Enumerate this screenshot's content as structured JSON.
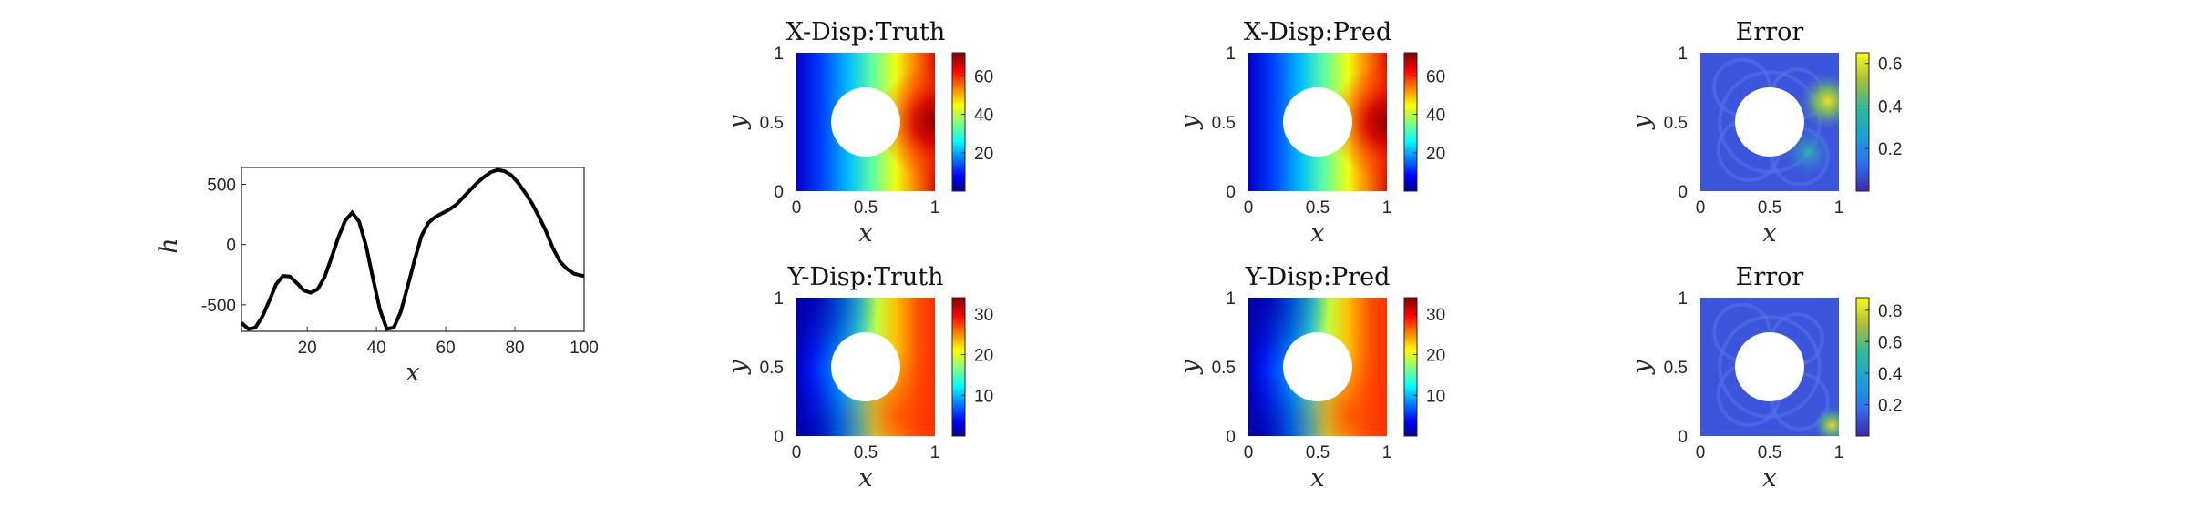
{
  "chart_data": [
    {
      "type": "line",
      "title": "",
      "xlabel": "x",
      "ylabel": "h",
      "xlim": [
        1,
        100
      ],
      "ylim": [
        -720,
        640
      ],
      "xticks": [
        "20",
        "40",
        "60",
        "80",
        "100"
      ],
      "yticks": [
        "500",
        "0",
        "-500"
      ],
      "x": [
        1,
        3,
        5,
        7,
        9,
        11,
        13,
        15,
        17,
        19,
        21,
        23,
        25,
        27,
        29,
        31,
        33,
        35,
        37,
        39,
        41,
        43,
        45,
        47,
        49,
        51,
        53,
        55,
        57,
        59,
        61,
        63,
        65,
        67,
        69,
        71,
        73,
        75,
        77,
        79,
        81,
        83,
        85,
        87,
        89,
        91,
        93,
        95,
        97,
        99,
        100
      ],
      "series": [
        {
          "values": [
            -650,
            -700,
            -690,
            -600,
            -470,
            -330,
            -260,
            -265,
            -320,
            -380,
            -400,
            -370,
            -270,
            -110,
            60,
            200,
            265,
            190,
            -10,
            -280,
            -540,
            -700,
            -690,
            -560,
            -350,
            -130,
            70,
            180,
            230,
            260,
            290,
            330,
            390,
            450,
            510,
            560,
            600,
            620,
            610,
            575,
            510,
            430,
            340,
            230,
            110,
            -30,
            -140,
            -200,
            -240,
            -255,
            -260
          ]
        }
      ]
    },
    {
      "type": "heatmap",
      "title": "X-Disp:Truth",
      "xlabel": "x",
      "ylabel": "y",
      "xlim": [
        0,
        1
      ],
      "ylim": [
        0,
        1
      ],
      "xticks": [
        "0",
        "0.5",
        "1"
      ],
      "yticks": [
        "1",
        "0.5",
        "0"
      ],
      "colormap": "jet",
      "clim": [
        0,
        72
      ],
      "colorbar_ticks": [
        "60",
        "40",
        "20"
      ]
    },
    {
      "type": "heatmap",
      "title": "X-Disp:Pred",
      "xlabel": "x",
      "ylabel": "y",
      "xlim": [
        0,
        1
      ],
      "ylim": [
        0,
        1
      ],
      "xticks": [
        "0",
        "0.5",
        "1"
      ],
      "yticks": [
        "1",
        "0.5",
        "0"
      ],
      "colormap": "jet",
      "clim": [
        0,
        72
      ],
      "colorbar_ticks": [
        "60",
        "40",
        "20"
      ]
    },
    {
      "type": "heatmap",
      "title": "Error",
      "xlabel": "x",
      "ylabel": "y",
      "xlim": [
        0,
        1
      ],
      "ylim": [
        0,
        1
      ],
      "xticks": [
        "0",
        "0.5",
        "1"
      ],
      "yticks": [
        "1",
        "0.5",
        "0"
      ],
      "colormap": "parula",
      "clim": [
        0,
        0.65
      ],
      "colorbar_ticks": [
        "0.6",
        "0.4",
        "0.2"
      ]
    },
    {
      "type": "heatmap",
      "title": "Y-Disp:Truth",
      "xlabel": "x",
      "ylabel": "y",
      "xlim": [
        0,
        1
      ],
      "ylim": [
        0,
        1
      ],
      "xticks": [
        "0",
        "0.5",
        "1"
      ],
      "yticks": [
        "1",
        "0.5",
        "0"
      ],
      "colormap": "jet",
      "clim": [
        0,
        34
      ],
      "colorbar_ticks": [
        "30",
        "20",
        "10"
      ]
    },
    {
      "type": "heatmap",
      "title": "Y-Disp:Pred",
      "xlabel": "x",
      "ylabel": "y",
      "xlim": [
        0,
        1
      ],
      "ylim": [
        0,
        1
      ],
      "xticks": [
        "0",
        "0.5",
        "1"
      ],
      "yticks": [
        "1",
        "0.5",
        "0"
      ],
      "colormap": "jet",
      "clim": [
        0,
        34
      ],
      "colorbar_ticks": [
        "30",
        "20",
        "10"
      ]
    },
    {
      "type": "heatmap",
      "title": "Error",
      "xlabel": "x",
      "ylabel": "y",
      "xlim": [
        0,
        1
      ],
      "ylim": [
        0,
        1
      ],
      "xticks": [
        "0",
        "0.5",
        "1"
      ],
      "yticks": [
        "1",
        "0.5",
        "0"
      ],
      "colormap": "parula",
      "clim": [
        0,
        0.88
      ],
      "colorbar_ticks": [
        "0.8",
        "0.6",
        "0.4",
        "0.2"
      ]
    }
  ]
}
